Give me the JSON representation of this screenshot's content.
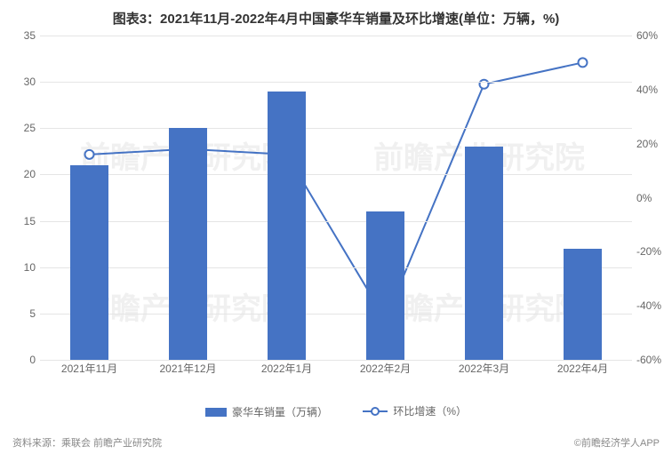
{
  "title": "图表3：2021年11月-2022年4月中国豪华车销量及环比增速(单位：万辆，%)",
  "chart": {
    "type": "bar+line",
    "categories": [
      "2021年11月",
      "2021年12月",
      "2022年1月",
      "2022年2月",
      "2022年3月",
      "2022年4月"
    ],
    "bar_series": {
      "name": "豪华车销量（万辆）",
      "values": [
        21,
        25,
        29,
        16,
        23,
        12
      ],
      "color": "#4573c4",
      "bar_width_ratio": 0.38
    },
    "line_series": {
      "name": "环比增速（%）",
      "values": [
        16,
        18,
        16,
        -45,
        42,
        50
      ],
      "color": "#4573c4",
      "line_width": 2,
      "marker_radius": 5,
      "marker_fill": "#ffffff"
    },
    "y_left": {
      "min": 0,
      "max": 35,
      "step": 5,
      "label_fontsize": 12,
      "label_color": "#666666"
    },
    "y_right": {
      "min": -60,
      "max": 60,
      "step": 20,
      "label_fontsize": 12,
      "label_color": "#666666",
      "suffix": "%"
    },
    "grid_color": "#e5e5e5",
    "background_color": "#ffffff",
    "title_fontsize": 15,
    "title_color": "#333333"
  },
  "legend": {
    "bar_label": "豪华车销量（万辆）",
    "line_label": "环比增速（%）"
  },
  "footer": {
    "source": "资料来源：乘联会 前瞻产业研究院",
    "copyright": "©前瞻经济学人APP"
  },
  "watermark": "前瞻产业研究院"
}
